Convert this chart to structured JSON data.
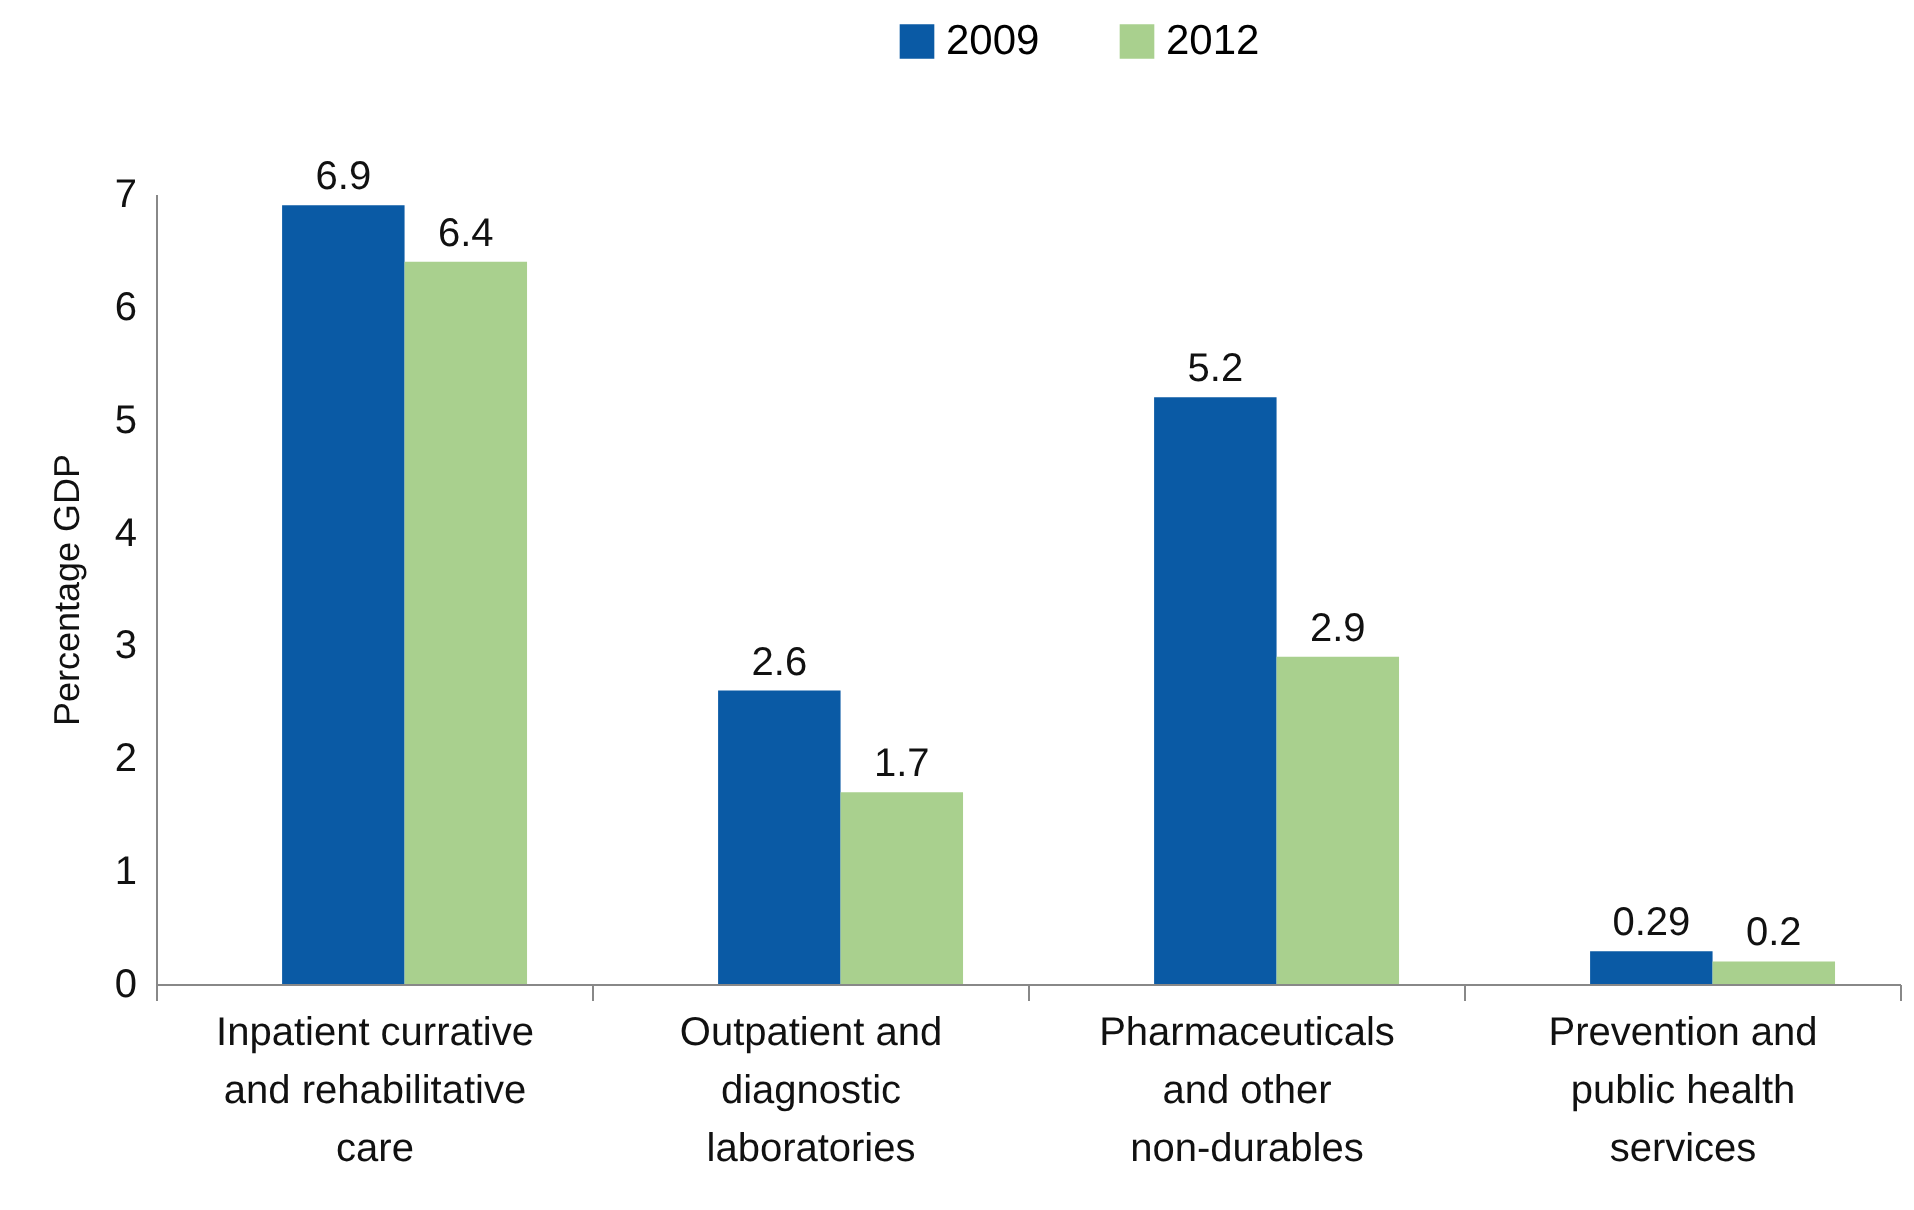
{
  "chart_data": {
    "type": "bar",
    "ylabel": "Percentage GDP",
    "categories": [
      "Inpatient currative\nand rehabilitative\ncare",
      "Outpatient and\ndiagnostic\nlaboratories",
      "Pharmaceuticals\nand other\nnon-durables",
      "Prevention and\npublic health\nservices"
    ],
    "series": [
      {
        "name": "2009",
        "color": "#0a5aa5",
        "values": [
          6.9,
          2.6,
          5.2,
          0.29
        ]
      },
      {
        "name": "2012",
        "color": "#a9d08e",
        "values": [
          6.4,
          1.7,
          2.9,
          0.2
        ]
      }
    ],
    "ylim": [
      0,
      7
    ],
    "yticks": [
      0,
      1,
      2,
      3,
      4,
      5,
      6,
      7
    ],
    "data_labels": true,
    "legend": "top"
  }
}
